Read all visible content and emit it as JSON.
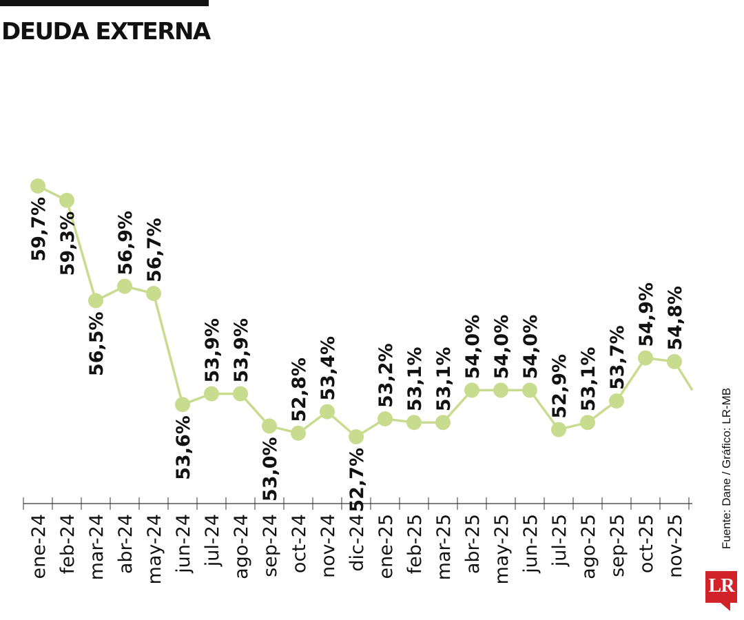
{
  "title": "DEUDA EXTERNA",
  "source": "Fuente: Dane / Gráfico: LR-MB",
  "logo_text": "LR",
  "colors": {
    "line": "#c8dc8f",
    "marker": "#c8dc8f",
    "text": "#111111",
    "axis": "#333333",
    "logo": "#d2232a"
  },
  "chart_data": {
    "type": "line",
    "title": "DEUDA EXTERNA",
    "xlabel": "",
    "ylabel": "",
    "x": [
      "ene-24",
      "feb-24",
      "mar-24",
      "abr-24",
      "may-24",
      "jun-24",
      "jul-24",
      "ago-24",
      "sep-24",
      "oct-24",
      "nov-24",
      "dic-24",
      "ene-25",
      "feb-25",
      "mar-25",
      "abr-25",
      "may-25",
      "jun-25",
      "jul-25",
      "ago-25",
      "sep-25",
      "oct-25",
      "nov-25"
    ],
    "values": [
      59.7,
      59.3,
      56.5,
      56.9,
      56.7,
      53.6,
      53.9,
      53.9,
      53.0,
      52.8,
      53.4,
      52.7,
      53.2,
      53.1,
      53.1,
      54.0,
      54.0,
      54.0,
      52.9,
      53.1,
      53.7,
      54.9,
      54.8
    ],
    "labels": [
      "59,7%",
      "59,3%",
      "56,5%",
      "56,9%",
      "56,7%",
      "53,6%",
      "53,9%",
      "53,9%",
      "53,0%",
      "52,8%",
      "53,4%",
      "52,7%",
      "53,2%",
      "53,1%",
      "53,1%",
      "54,0%",
      "54,0%",
      "54,0%",
      "52,9%",
      "53,1%",
      "53,7%",
      "54,9%",
      "54,8%"
    ],
    "label_position": [
      "below",
      "below",
      "below",
      "above",
      "above",
      "below",
      "above",
      "above",
      "below",
      "above",
      "above",
      "below",
      "above",
      "above",
      "above",
      "above",
      "above",
      "above",
      "above",
      "above",
      "above",
      "above",
      "above"
    ],
    "trailing_value": 54.0,
    "ylim": [
      52.0,
      60.0
    ],
    "grid": false,
    "legend": "none"
  }
}
